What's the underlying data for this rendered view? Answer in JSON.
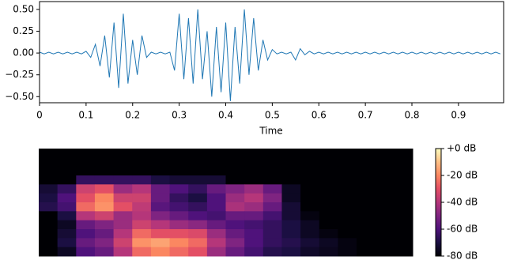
{
  "chart_data": [
    {
      "type": "line",
      "x_label": "Time",
      "color": "#1f77b4",
      "x": [
        0,
        0.01,
        0.02,
        0.03,
        0.04,
        0.05,
        0.06,
        0.07,
        0.08,
        0.09,
        0.1,
        0.11,
        0.12,
        0.13,
        0.14,
        0.15,
        0.16,
        0.17,
        0.18,
        0.19,
        0.2,
        0.21,
        0.22,
        0.23,
        0.24,
        0.25,
        0.26,
        0.27,
        0.28,
        0.29,
        0.3,
        0.31,
        0.32,
        0.33,
        0.34,
        0.35,
        0.36,
        0.37,
        0.38,
        0.39,
        0.4,
        0.41,
        0.42,
        0.43,
        0.44,
        0.45,
        0.46,
        0.47,
        0.48,
        0.49,
        0.5,
        0.51,
        0.52,
        0.53,
        0.54,
        0.55,
        0.56,
        0.57,
        0.58,
        0.59,
        0.6,
        0.61,
        0.62,
        0.63,
        0.64,
        0.65,
        0.66,
        0.67,
        0.68,
        0.69,
        0.7,
        0.71,
        0.72,
        0.73,
        0.74,
        0.75,
        0.76,
        0.77,
        0.78,
        0.79,
        0.8,
        0.81,
        0.82,
        0.83,
        0.84,
        0.85,
        0.86,
        0.87,
        0.88,
        0.89,
        0.9,
        0.91,
        0.92,
        0.93,
        0.94,
        0.95,
        0.96,
        0.97,
        0.98,
        0.99
      ],
      "values": [
        0.01,
        -0.01,
        0.01,
        -0.01,
        0.01,
        -0.01,
        0.01,
        -0.01,
        0.01,
        -0.01,
        0.02,
        -0.05,
        0.1,
        -0.15,
        0.2,
        -0.28,
        0.35,
        -0.4,
        0.45,
        -0.35,
        0.15,
        -0.25,
        0.2,
        -0.05,
        0.01,
        -0.01,
        0.01,
        -0.01,
        0.01,
        -0.2,
        0.45,
        -0.3,
        0.4,
        -0.35,
        0.5,
        -0.3,
        0.25,
        -0.5,
        0.3,
        -0.45,
        0.35,
        -0.55,
        0.3,
        -0.35,
        0.5,
        -0.25,
        0.4,
        -0.2,
        0.15,
        -0.08,
        0.04,
        -0.01,
        0.01,
        -0.01,
        0.01,
        -0.08,
        0.05,
        -0.02,
        0.02,
        -0.01,
        0.01,
        -0.01,
        0.01,
        -0.01,
        0.01,
        -0.01,
        0.01,
        -0.01,
        0.01,
        -0.01,
        0.01,
        -0.01,
        0.01,
        -0.01,
        0.01,
        -0.01,
        0.01,
        -0.01,
        0.01,
        -0.01,
        0.01,
        -0.01,
        0.01,
        -0.01,
        0.01,
        -0.01,
        0.01,
        -0.01,
        0.01,
        -0.01,
        0.01,
        -0.01,
        0.01,
        -0.01,
        0.01,
        -0.01,
        0.01,
        -0.01,
        0.01,
        -0.01
      ],
      "xlim": [
        0,
        0.997
      ],
      "xticks": [
        0,
        0.1,
        0.2,
        0.3,
        0.4,
        0.5,
        0.6,
        0.7,
        0.8,
        0.9
      ],
      "ylim": [
        -0.57,
        0.59
      ],
      "yticks": [
        {
          "value": 0.5,
          "label": "0.50"
        },
        {
          "value": 0.25,
          "label": "0.25"
        },
        {
          "value": 0,
          "label": "0.00"
        },
        {
          "value": -0.25,
          "label": "−0.25"
        },
        {
          "value": -0.5,
          "label": "−0.50"
        }
      ]
    },
    {
      "type": "heatmap",
      "colormap": "magma",
      "zlim": [
        -80,
        0
      ],
      "zticks": [
        {
          "value": 0,
          "label": "+0 dB"
        },
        {
          "value": -20,
          "label": "-20 dB"
        },
        {
          "value": -40,
          "label": "-40 dB"
        },
        {
          "value": -60,
          "label": "-60 dB"
        },
        {
          "value": -80,
          "label": "-80 dB"
        }
      ],
      "z": [
        [
          -80,
          -80,
          -80,
          -80,
          -80,
          -80,
          -80,
          -80,
          -80,
          -80,
          -80,
          -80,
          -80,
          -80,
          -80,
          -80,
          -80,
          -80,
          -80,
          -80
        ],
        [
          -80,
          -80,
          -80,
          -80,
          -80,
          -80,
          -80,
          -80,
          -80,
          -80,
          -80,
          -80,
          -80,
          -80,
          -80,
          -80,
          -80,
          -80,
          -80,
          -80
        ],
        [
          -80,
          -80,
          -80,
          -80,
          -80,
          -80,
          -80,
          -80,
          -80,
          -80,
          -80,
          -80,
          -80,
          -80,
          -80,
          -80,
          -80,
          -80,
          -80,
          -80
        ],
        [
          -80,
          -80,
          -65,
          -65,
          -65,
          -65,
          -70,
          -72,
          -72,
          -72,
          -80,
          -80,
          -80,
          -80,
          -80,
          -80,
          -80,
          -80,
          -80,
          -80
        ],
        [
          -72,
          -65,
          -35,
          -30,
          -45,
          -40,
          -55,
          -60,
          -65,
          -55,
          -50,
          -45,
          -55,
          -75,
          -80,
          -80,
          -80,
          -80,
          -80,
          -80
        ],
        [
          -70,
          -60,
          -30,
          -20,
          -35,
          -35,
          -55,
          -65,
          -70,
          -60,
          -45,
          -40,
          -50,
          -75,
          -80,
          -80,
          -80,
          -80,
          -80,
          -80
        ],
        [
          -68,
          -62,
          -25,
          -18,
          -30,
          -38,
          -58,
          -62,
          -65,
          -60,
          -42,
          -45,
          -55,
          -72,
          -80,
          -80,
          -80,
          -80,
          -80,
          -80
        ],
        [
          -80,
          -70,
          -40,
          -35,
          -45,
          -40,
          -50,
          -55,
          -60,
          -62,
          -55,
          -55,
          -62,
          -72,
          -78,
          -80,
          -80,
          -80,
          -80,
          -80
        ],
        [
          -80,
          -75,
          -55,
          -50,
          -45,
          -35,
          -40,
          -45,
          -48,
          -55,
          -60,
          -62,
          -65,
          -70,
          -75,
          -80,
          -80,
          -80,
          -80,
          -80
        ],
        [
          -80,
          -72,
          -60,
          -55,
          -40,
          -25,
          -30,
          -30,
          -32,
          -45,
          -55,
          -60,
          -65,
          -70,
          -75,
          -78,
          -80,
          -80,
          -80,
          -80
        ],
        [
          -80,
          -70,
          -55,
          -50,
          -35,
          -18,
          -15,
          -20,
          -25,
          -40,
          -50,
          -60,
          -65,
          -68,
          -72,
          -75,
          -78,
          -80,
          -80,
          -80
        ],
        [
          -80,
          -75,
          -60,
          -55,
          -40,
          -25,
          -20,
          -25,
          -30,
          -45,
          -55,
          -62,
          -68,
          -70,
          -74,
          -76,
          -78,
          -80,
          -80,
          -80
        ]
      ]
    }
  ]
}
